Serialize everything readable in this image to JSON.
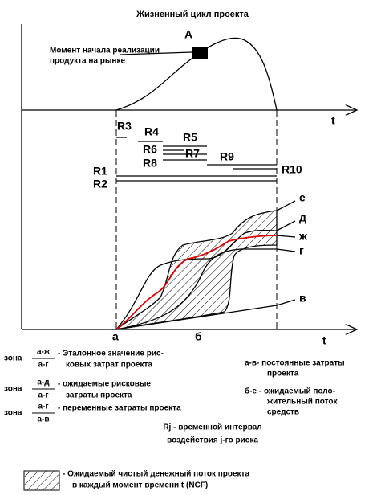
{
  "title": "Жизненный цикл проекта",
  "top_chart": {
    "point_label": "А",
    "annotation_lines": [
      "Момент начала реализации",
      "продукта на рынке"
    ],
    "axis_label": "t"
  },
  "risks": [
    "R1",
    "R2",
    "R3",
    "R4",
    "R5",
    "R6",
    "R7",
    "R8",
    "R9",
    "R10"
  ],
  "bottom_chart": {
    "axis_label": "t",
    "curve_labels": [
      "е",
      "д",
      "ж",
      "г",
      "в"
    ],
    "x_labels": [
      "а",
      "б"
    ]
  },
  "zones": [
    {
      "word": "зона",
      "numerator": "а-ж",
      "denominator": "а-г",
      "text_lines": [
        "- Эталонное значение рис-",
        "ковых затрат проекта"
      ]
    },
    {
      "word": "зона",
      "numerator": "а-д",
      "denominator": "а-г",
      "text_lines": [
        "- ожидаемые рисковые",
        "затраты проекта"
      ]
    },
    {
      "word": "зона",
      "numerator": "а-г",
      "denominator": "а-в",
      "text_lines": [
        "- переменные затраты проекта"
      ]
    }
  ],
  "definitions": [
    {
      "text_lines": [
        "а-в- постоянные затраты",
        "проекта"
      ]
    },
    {
      "text_lines": [
        "б-е - ожидаемый поло-",
        "жительный поток",
        "средств"
      ]
    }
  ],
  "note_lines": [
    "Rj - временной интервал",
    "воздействия j-го риска"
  ],
  "legend_lines": [
    "- Ожидаемый чистый денежный поток проекта",
    "в каждый момент времени t (NCF)"
  ]
}
